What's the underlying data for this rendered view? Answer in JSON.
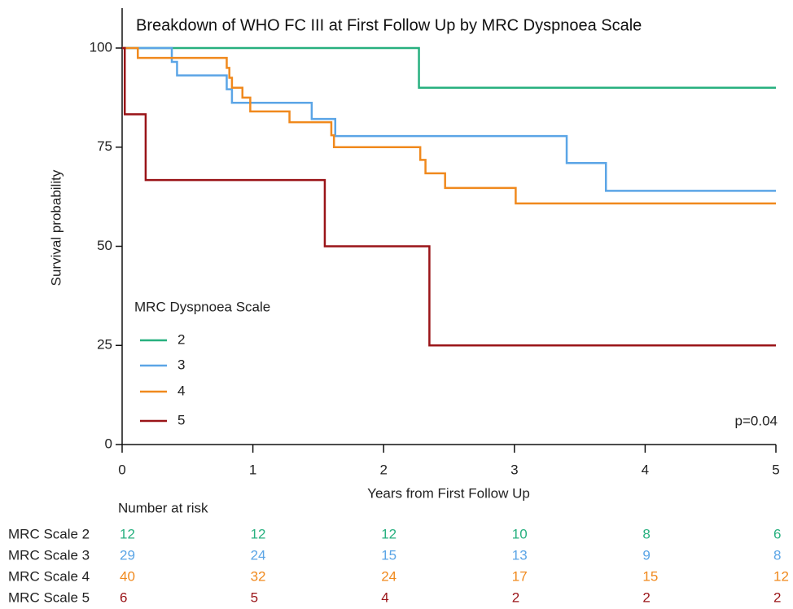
{
  "chart_data": {
    "type": "step",
    "title": "Breakdown of WHO FC III at First Follow Up by MRC Dyspnoea Scale",
    "x_label": "Years from First Follow Up",
    "y_label": "Survival probability",
    "xlim": [
      0,
      5
    ],
    "ylim": [
      0,
      100
    ],
    "xticks": [
      0,
      1,
      2,
      3,
      4,
      5
    ],
    "yticks": [
      0,
      25,
      50,
      75,
      100
    ],
    "legend_title": "MRC Dyspnoea Scale",
    "annotation": "p=0.04",
    "series": [
      {
        "name": "2",
        "color": "#27b07f",
        "x": [
          0,
          2.27,
          5
        ],
        "values": [
          100,
          90,
          90
        ]
      },
      {
        "name": "3",
        "color": "#5ba5e6",
        "x": [
          0,
          0.38,
          0.42,
          0.8,
          0.84,
          1.45,
          1.63,
          3.4,
          3.7,
          5
        ],
        "values": [
          100,
          96.5,
          93.1,
          89.6,
          86.2,
          82.1,
          77.8,
          71,
          64,
          64
        ]
      },
      {
        "name": "4",
        "color": "#f0891d",
        "x": [
          0,
          0.12,
          0.8,
          0.82,
          0.84,
          0.92,
          0.98,
          1.28,
          1.6,
          1.62,
          2.28,
          2.32,
          2.47,
          3.01,
          5
        ],
        "values": [
          100,
          97.5,
          95,
          92.5,
          90,
          87.5,
          84,
          81.3,
          78,
          75,
          71.8,
          68.4,
          64.7,
          60.8,
          60.8
        ]
      },
      {
        "name": "5",
        "color": "#9a1418",
        "x": [
          0,
          0.02,
          0.18,
          1.55,
          2.35,
          5
        ],
        "values": [
          100,
          83.3,
          66.7,
          50,
          25,
          25
        ]
      }
    ],
    "risk_table": {
      "title": "Number at risk",
      "rows": [
        {
          "label": "MRC Scale 2",
          "values": [
            12,
            12,
            12,
            10,
            8,
            6
          ]
        },
        {
          "label": "MRC Scale 3",
          "values": [
            29,
            24,
            15,
            13,
            9,
            8
          ]
        },
        {
          "label": "MRC Scale 4",
          "values": [
            40,
            32,
            24,
            17,
            15,
            12
          ]
        },
        {
          "label": "MRC Scale 5",
          "values": [
            6,
            5,
            4,
            2,
            2,
            2
          ]
        }
      ]
    }
  }
}
